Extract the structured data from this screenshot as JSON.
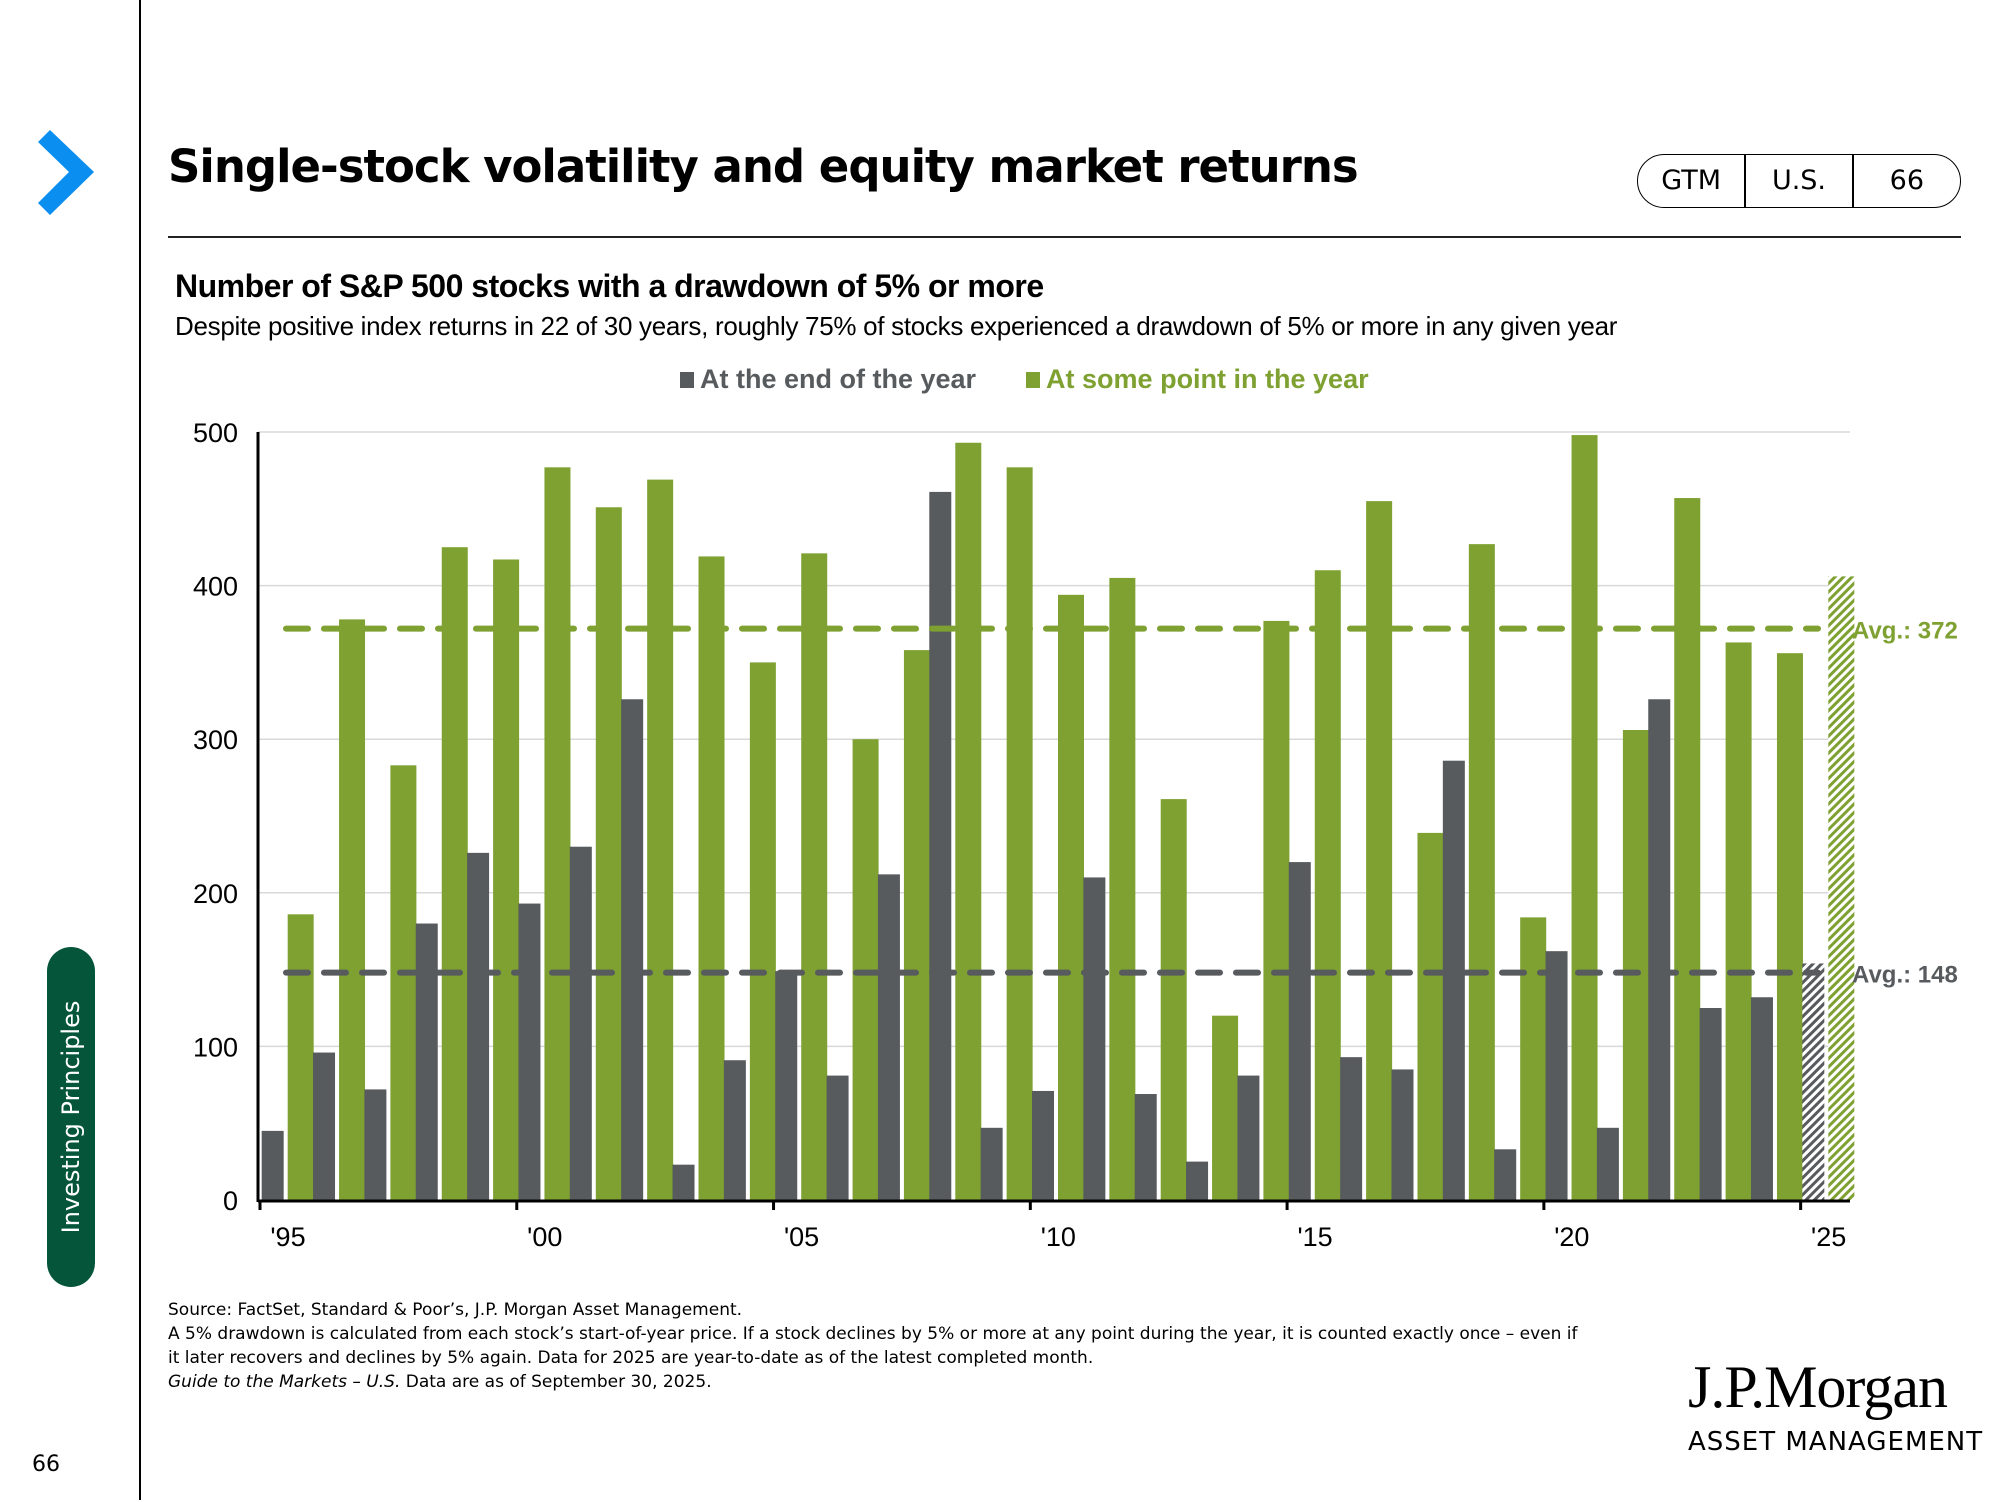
{
  "header": {
    "title": "Single-stock volatility and equity market returns",
    "badge": [
      "GTM",
      "U.S.",
      "66"
    ],
    "chevron_color": "#0a8ef0"
  },
  "sidebar": {
    "section_label": "Investing Principles",
    "section_color": "#04553a",
    "page_number": "66"
  },
  "footer": {
    "line1": "Source: FactSet, Standard & Poor’s, J.P. Morgan Asset Management.",
    "line2": "A 5% drawdown is calculated from each stock’s start-of-year price. If a stock declines by 5% or more at any point during the year, it is counted exactly once – even if",
    "line3": "it later recovers and declines by 5% again. Data for 2025 are year-to-date as of the latest completed month.",
    "line4_italic": "Guide to the Markets – U.S.",
    "line4_rest": " Data are as of September 30, 2025."
  },
  "logo": {
    "main": "J.P.Morgan",
    "sub": "ASSET MANAGEMENT"
  },
  "chart_data": {
    "type": "bar",
    "title": "Number of S&P 500 stocks with a drawdown of 5%  or more",
    "subtitle": "Despite positive index returns in 22 of 30 years, roughly 75% of stocks experienced a drawdown of 5% or more in any given year",
    "xlabel": "",
    "ylabel": "",
    "ylim": [
      0,
      500
    ],
    "yticks": [
      0,
      100,
      200,
      300,
      400,
      500
    ],
    "grid": true,
    "legend_position": "top-center",
    "categories": [
      "1995",
      "1996",
      "1997",
      "1998",
      "1999",
      "2000",
      "2001",
      "2002",
      "2003",
      "2004",
      "2005",
      "2006",
      "2007",
      "2008",
      "2009",
      "2010",
      "2011",
      "2012",
      "2013",
      "2014",
      "2015",
      "2016",
      "2017",
      "2018",
      "2019",
      "2020",
      "2021",
      "2022",
      "2023",
      "2024",
      "2025"
    ],
    "xtick_labels": [
      {
        "index": 0,
        "label": "'95"
      },
      {
        "index": 5,
        "label": "'00"
      },
      {
        "index": 10,
        "label": "'05"
      },
      {
        "index": 15,
        "label": "'10"
      },
      {
        "index": 20,
        "label": "'15"
      },
      {
        "index": 25,
        "label": "'20"
      },
      {
        "index": 30,
        "label": "'25"
      }
    ],
    "series": [
      {
        "name": "At the end of the year",
        "color": "#575b5e",
        "values": [
          45,
          96,
          72,
          180,
          226,
          193,
          230,
          326,
          23,
          91,
          149,
          81,
          212,
          461,
          47,
          71,
          210,
          69,
          25,
          81,
          220,
          93,
          85,
          286,
          33,
          162,
          47,
          326,
          125,
          132,
          154
        ],
        "average": 148,
        "average_label": "Avg.:  148"
      },
      {
        "name": "At some point in the year",
        "color": "#7ea132",
        "values": [
          186,
          378,
          283,
          425,
          417,
          477,
          451,
          469,
          419,
          350,
          421,
          300,
          358,
          493,
          477,
          394,
          405,
          261,
          120,
          377,
          410,
          455,
          239,
          427,
          184,
          498,
          306,
          457,
          363,
          356,
          406
        ],
        "average": 372,
        "average_label": "Avg.:  372"
      }
    ],
    "hatched_categories": [
      "2025"
    ],
    "annotations": [
      "Avg.:  372",
      "Avg.:  148"
    ]
  }
}
